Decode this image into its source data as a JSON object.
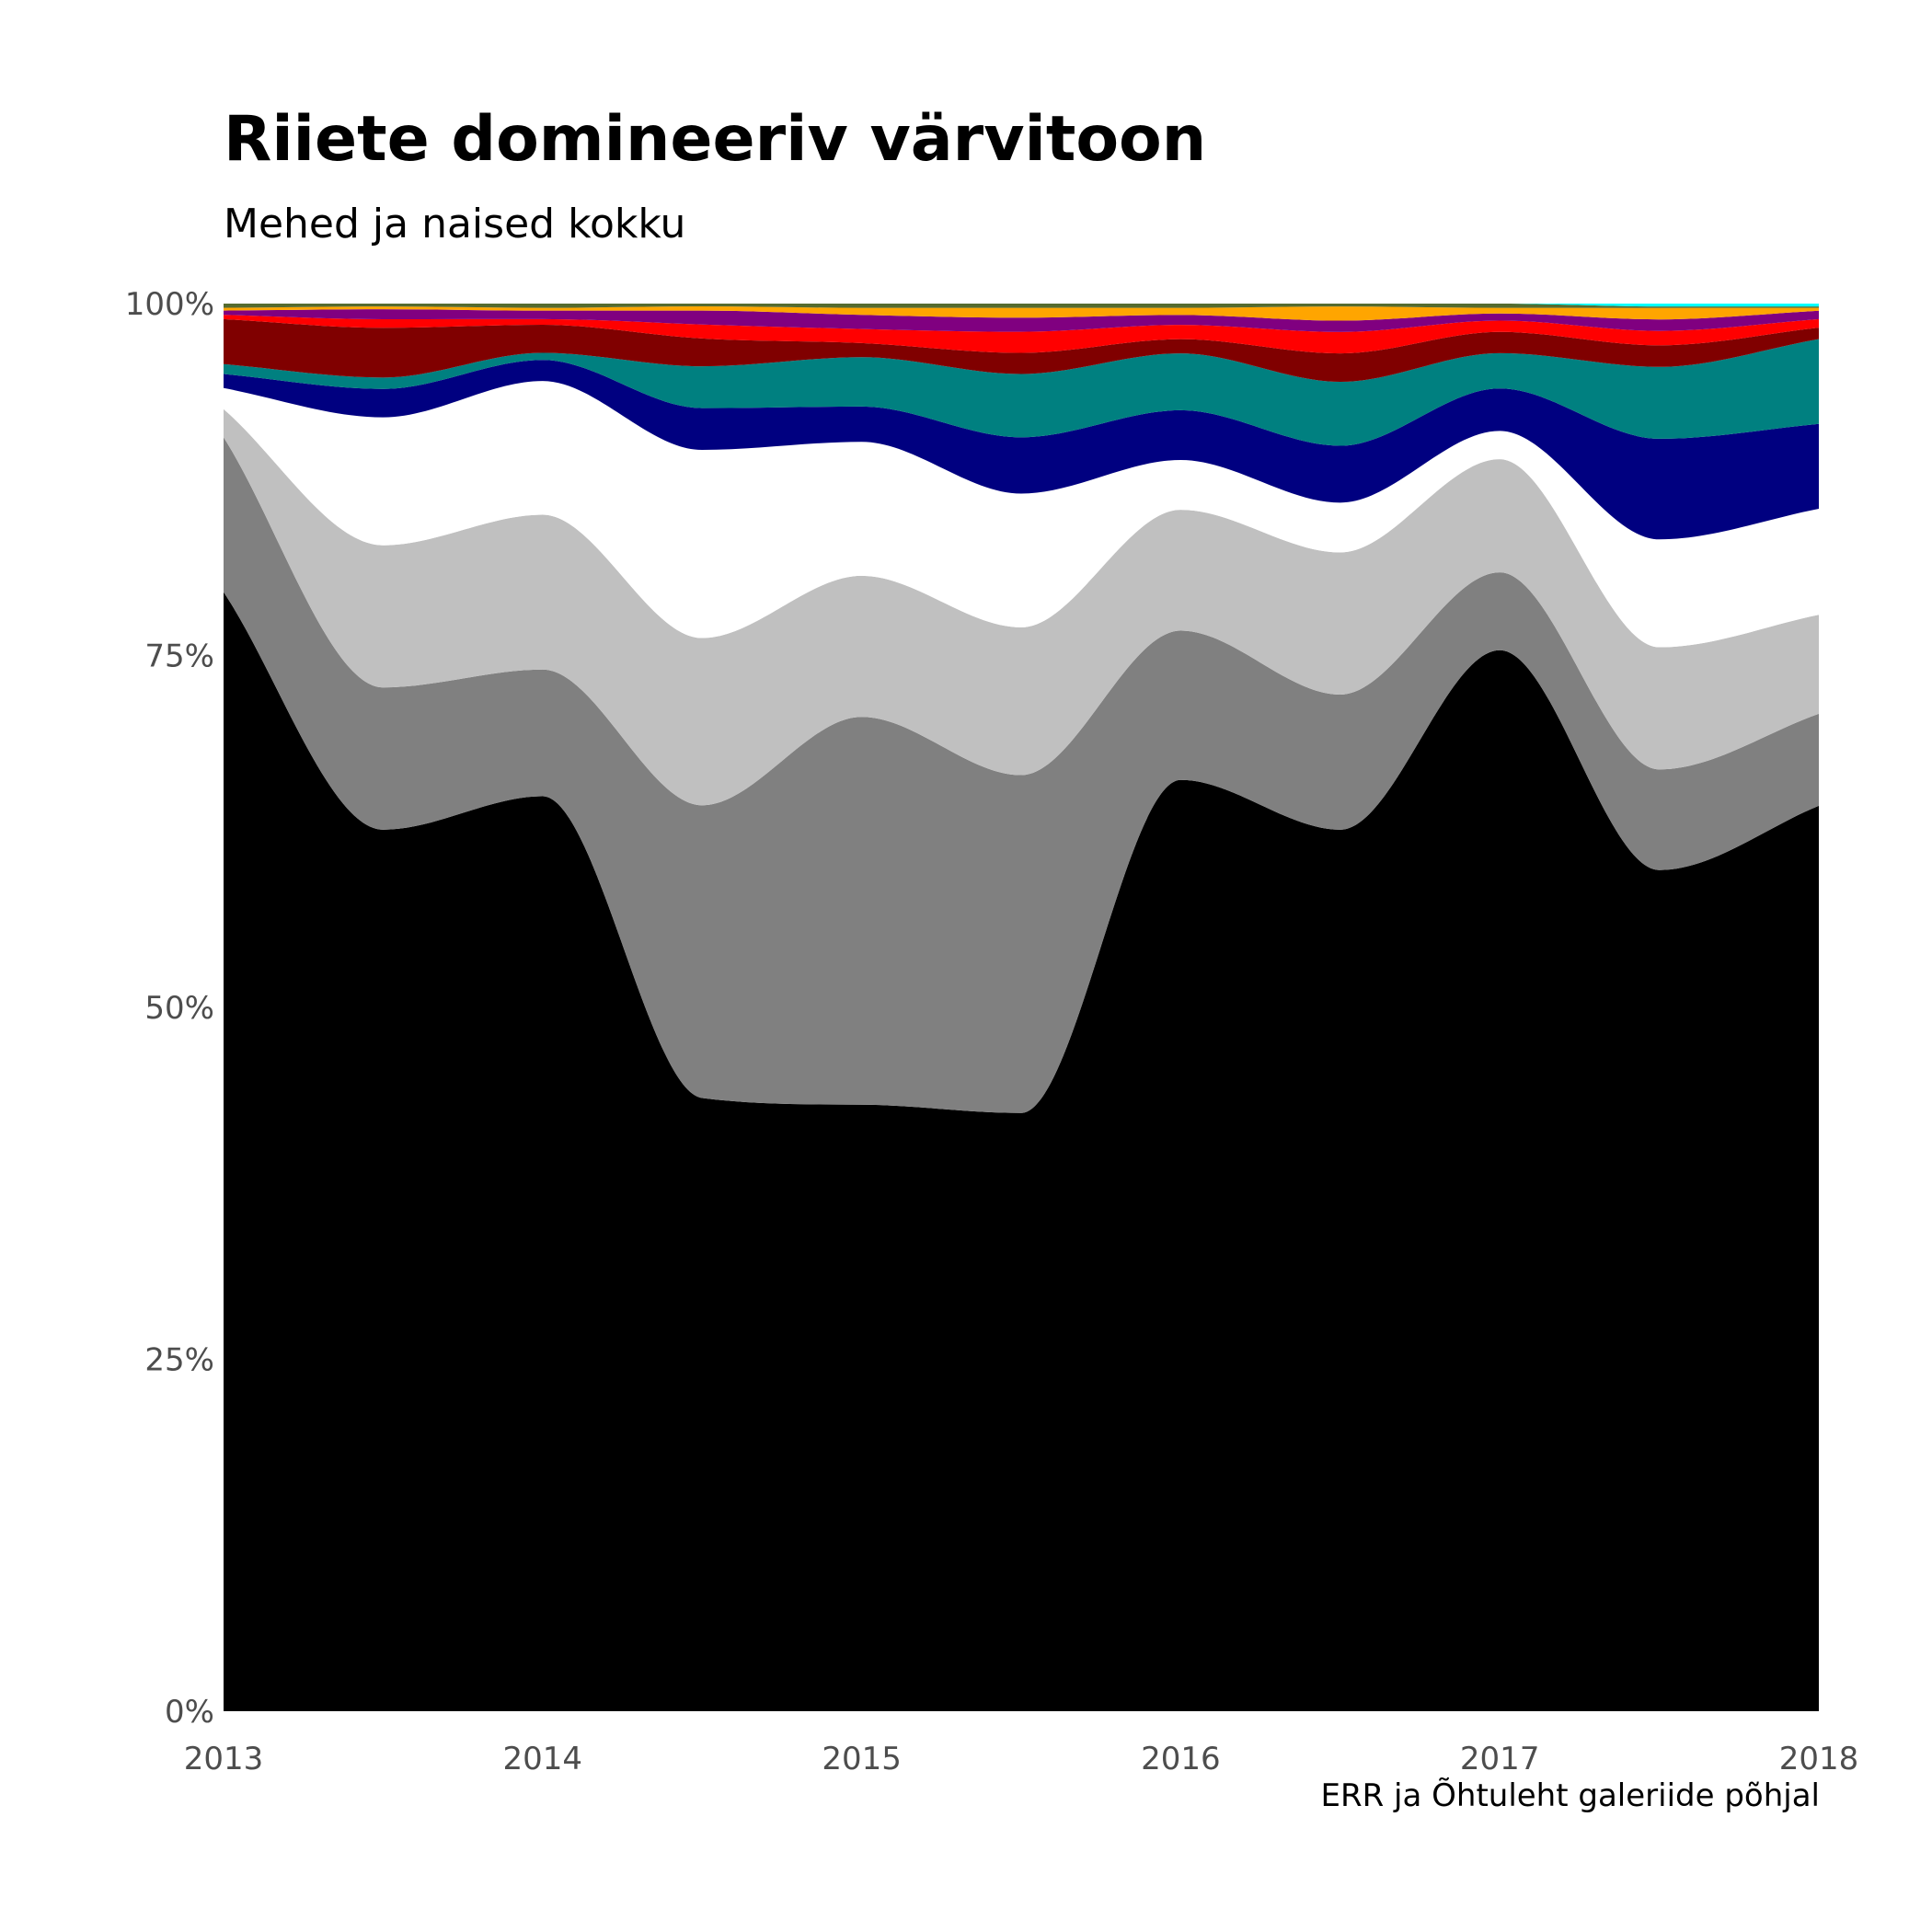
{
  "title": "Riiete domineeriv värvitoon",
  "subtitle": "Mehed ja naised kokku",
  "caption": "ERR ja Õhtuleht galeriide põhjal",
  "chart_data": {
    "type": "area",
    "stacked": true,
    "smoothed": true,
    "title": "Riiete domineeriv värvitoon",
    "subtitle": "Mehed ja naised kokku",
    "xlabel": "",
    "ylabel": "",
    "x": [
      2013,
      2013.5,
      2014,
      2014.5,
      2015,
      2015.5,
      2016,
      2016.5,
      2017,
      2017.5,
      2018
    ],
    "x_ticks": [
      "2013",
      "2014",
      "2015",
      "2016",
      "2017",
      "2018"
    ],
    "y_ticks": [
      "0%",
      "25%",
      "50%",
      "75%",
      "100%"
    ],
    "ylim": [
      0,
      100
    ],
    "grid": false,
    "legend": "none",
    "series": [
      {
        "color": "#000000",
        "values": [
          79.5,
          62.0,
          65.0,
          44.0,
          43.0,
          42.5,
          65.5,
          62.0,
          75.0,
          58.5,
          64.0
        ]
      },
      {
        "color": "#808080",
        "values": [
          11.0,
          10.0,
          9.0,
          21.0,
          27.5,
          24.0,
          10.5,
          9.5,
          5.5,
          7.0,
          6.5
        ]
      },
      {
        "color": "#C0C0C0",
        "values": [
          2.0,
          10.0,
          11.0,
          12.0,
          10.0,
          10.5,
          8.5,
          10.0,
          8.0,
          8.5,
          7.0
        ]
      },
      {
        "color": "#FFFFFF",
        "values": [
          1.5,
          9.0,
          9.5,
          13.5,
          9.5,
          9.5,
          3.5,
          3.5,
          2.0,
          7.5,
          7.5
        ]
      },
      {
        "color": "#000080",
        "values": [
          1.0,
          2.0,
          1.5,
          3.0,
          2.5,
          4.0,
          3.5,
          4.0,
          3.0,
          7.0,
          6.0
        ]
      },
      {
        "color": "#008080",
        "values": [
          0.7,
          0.8,
          0.5,
          3.0,
          3.5,
          4.5,
          4.0,
          4.5,
          2.5,
          5.0,
          6.0
        ]
      },
      {
        "color": "#800000",
        "values": [
          3.2,
          3.5,
          2.0,
          2.0,
          1.0,
          1.5,
          1.0,
          2.0,
          1.5,
          1.5,
          0.8
        ]
      },
      {
        "color": "#FF0000",
        "values": [
          0.3,
          0.6,
          0.4,
          1.0,
          1.0,
          1.5,
          1.0,
          1.5,
          0.8,
          1.0,
          0.6
        ]
      },
      {
        "color": "#800080",
        "values": [
          0.3,
          0.7,
          0.6,
          1.0,
          1.0,
          1.0,
          0.7,
          0.8,
          0.5,
          0.8,
          0.6
        ]
      },
      {
        "color": "#FFA500",
        "values": [
          0.2,
          0.2,
          0.2,
          0.3,
          0.5,
          0.7,
          0.5,
          1.0,
          0.4,
          0.8,
          0.2
        ]
      },
      {
        "color": "#556B2F",
        "values": [
          0.3,
          0.2,
          0.3,
          0.2,
          0.3,
          0.3,
          0.3,
          0.2,
          0.3,
          0.1,
          0.1
        ]
      },
      {
        "color": "#00FFFF",
        "values": [
          0.0,
          0.0,
          0.0,
          0.0,
          0.0,
          0.0,
          0.0,
          0.0,
          0.0,
          0.2,
          0.2
        ]
      }
    ]
  }
}
